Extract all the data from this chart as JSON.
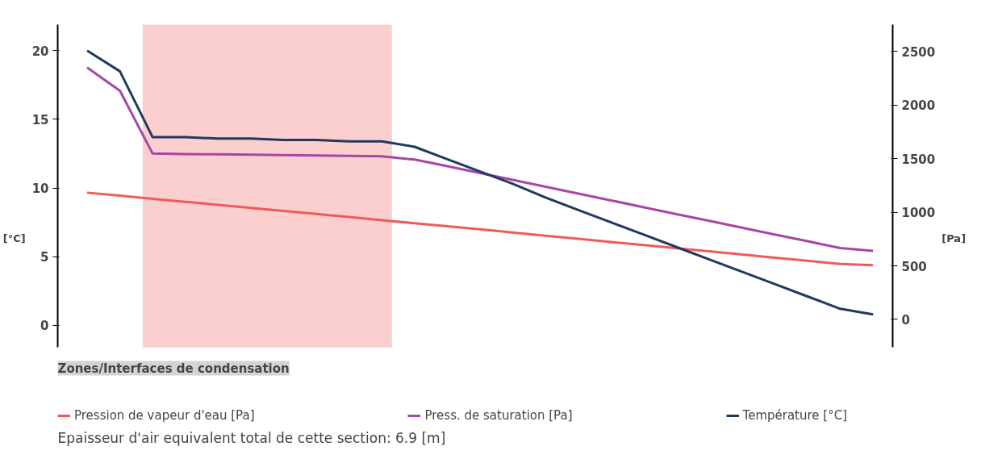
{
  "chart_data": {
    "type": "line",
    "ylabel": "[°C]",
    "y2label": "[Pa]",
    "categories": [
      null,
      null,
      null,
      null,
      null,
      null,
      null,
      null,
      null,
      null,
      null,
      null,
      null,
      null,
      null,
      null,
      null,
      null,
      null,
      null,
      null,
      null,
      null,
      null,
      null
    ],
    "series": [
      {
        "name": "Pression de vapeur d'eau [Pa]",
        "color": "#f05a5a",
        "axis": "y2",
        "values": [
          1182,
          1154,
          1125,
          1097,
          1069,
          1040,
          1012,
          983,
          955,
          926,
          897,
          869,
          840,
          810,
          781,
          752,
          722,
          693,
          664,
          635,
          605,
          576,
          547,
          517,
          505
        ]
      },
      {
        "name": "Press. de saturation [Pa]",
        "color": "#a646a6",
        "axis": "y2",
        "values": [
          2350,
          2133,
          1547,
          1543,
          1540,
          1536,
          1532,
          1529,
          1525,
          1522,
          1491,
          1429,
          1365,
          1302,
          1238,
          1174,
          1110,
          1046,
          982,
          920,
          856,
          792,
          729,
          665,
          640
        ]
      },
      {
        "name": "Température [°C]",
        "color": "#1f3a5f",
        "values": [
          20.0,
          18.5,
          13.7,
          13.7,
          13.6,
          13.6,
          13.5,
          13.5,
          13.4,
          13.4,
          13.0,
          12.1,
          11.2,
          10.3,
          9.3,
          8.4,
          7.5,
          6.6,
          5.7,
          4.8,
          3.9,
          3.0,
          2.1,
          1.2,
          0.8
        ]
      }
    ],
    "ylim": [
      -1.6,
      21.9
    ],
    "yticks": [
      0,
      5,
      10,
      15,
      20
    ],
    "y2lim": [
      -260,
      2750
    ],
    "y2ticks": [
      0,
      500,
      1000,
      1500,
      2000,
      2500
    ],
    "annotations": [
      "Zones/Interfaces de condensation",
      "Epaisseur d'air equivalent total de cette section:      6.9 [m]"
    ],
    "grid": false,
    "legend": "bottom",
    "line_style": "solid",
    "marker": "none",
    "tick_labels": "y"
  }
}
